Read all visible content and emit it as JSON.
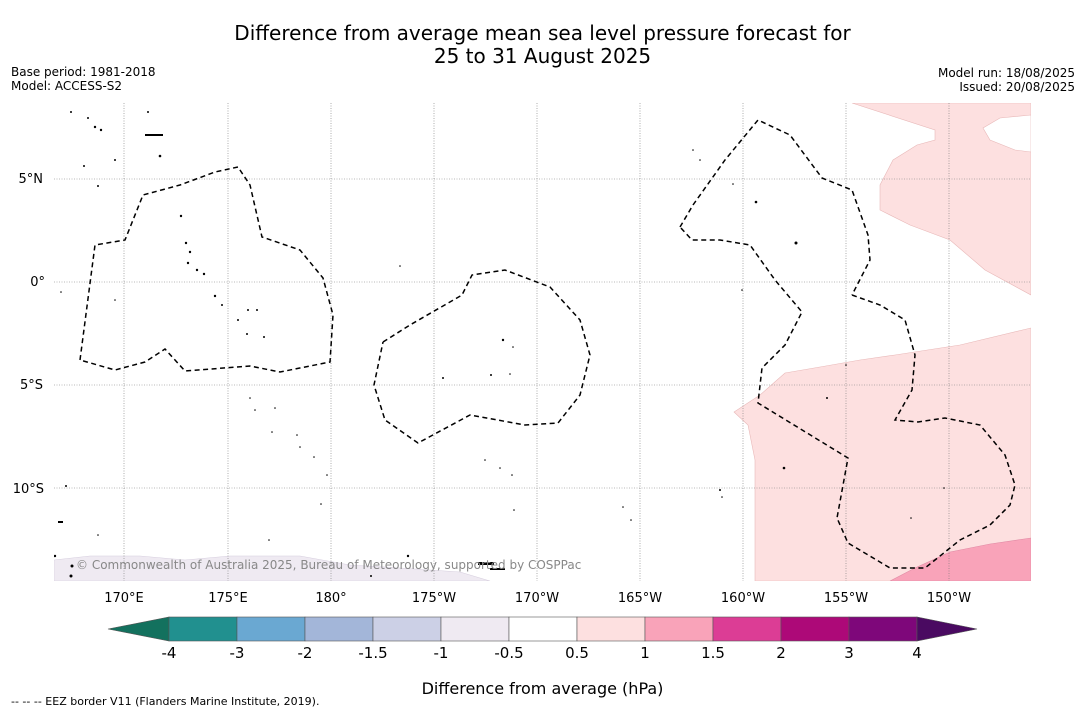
{
  "header": {
    "title_line1": "Difference from average mean sea level pressure forecast for",
    "title_line2": "25 to 31 August 2025",
    "base_period": "Base period: 1981-2018",
    "model": "Model: ACCESS-S2",
    "model_run": "Model run: 18/08/2025",
    "issued": "Issued: 20/08/2025"
  },
  "map": {
    "lat_labels": [
      "5°N",
      "0°",
      "5°S",
      "10°S"
    ],
    "lon_labels": [
      "170°E",
      "175°E",
      "180°",
      "175°W",
      "170°W",
      "165°W",
      "160°W",
      "155°W",
      "150°W"
    ],
    "attribution": "© Commonwealth of Australia 2025, Bureau of Meteorology, supported by COSPPac",
    "land_color": "#000000",
    "eez_line_style": "dashed"
  },
  "colorbar": {
    "label": "Difference from average (hPa)",
    "tick_labels": [
      "-4",
      "-3",
      "-2",
      "-1.5",
      "-1",
      "-0.5",
      "0.5",
      "1",
      "1.5",
      "2",
      "3",
      "4"
    ],
    "under_color": "#13715e",
    "over_color": "#4a0a61",
    "colors": [
      "#21908f",
      "#6aa8d2",
      "#a3b6d9",
      "#ccd0e6",
      "#efeaf2",
      "#ffffff",
      "#fde0e0",
      "#f9a3b9",
      "#dc3d95",
      "#ad0978",
      "#7e077a"
    ]
  },
  "footer": {
    "legend_text": "--  --  -- EEZ border V11 (Flanders Marine Institute, 2019)."
  }
}
